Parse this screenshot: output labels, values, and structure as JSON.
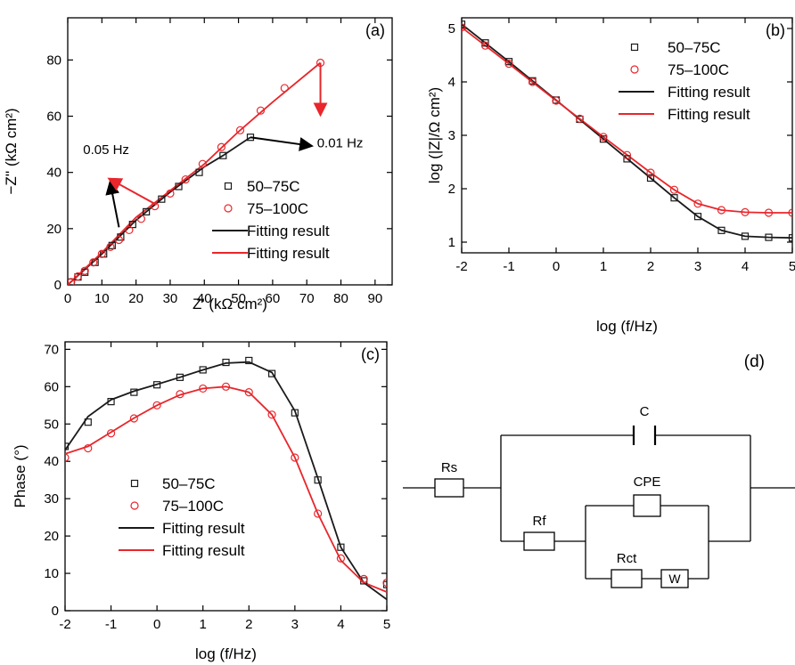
{
  "colors": {
    "black_series": "#1a1a1a",
    "red_series": "#e8262b",
    "axis": "#000000"
  },
  "chart_data": [
    {
      "panel": "(a)",
      "type": "scatter",
      "xlabel": "Z' (kΩ cm²)",
      "ylabel": "−Z'' (kΩ cm²)",
      "xlim": [
        0,
        95
      ],
      "ylim": [
        0,
        95
      ],
      "xticks": [
        0,
        10,
        20,
        30,
        40,
        50,
        60,
        70,
        80,
        90
      ],
      "yticks": [
        0,
        20,
        40,
        60,
        80
      ],
      "legend": [
        "50–75C",
        "75–100C",
        "Fitting result",
        "Fitting result"
      ],
      "legend_position": "right",
      "annotations": [
        "0.05 Hz",
        "0.01 Hz"
      ],
      "series": [
        {
          "name": "50–75C",
          "marker": "square",
          "color": "black",
          "x": [
            1,
            3,
            5,
            8,
            10.5,
            13,
            15.5,
            19,
            23,
            27.5,
            32.5,
            38.5,
            45.5,
            53.5
          ],
          "y": [
            1,
            2.8,
            4.5,
            8,
            11,
            14,
            17,
            21.5,
            26,
            30.5,
            35,
            40,
            46,
            52.5
          ]
        },
        {
          "name": "75–100C",
          "marker": "circle",
          "color": "red",
          "x": [
            1,
            3,
            5,
            7.5,
            10,
            12.5,
            15,
            18,
            21.5,
            25.5,
            30,
            34.5,
            39.5,
            45,
            50.5,
            56.5,
            63.5,
            74
          ],
          "y": [
            1,
            3,
            5,
            8,
            11,
            13.5,
            16,
            19.5,
            23.5,
            28,
            32.5,
            37.5,
            43,
            49,
            55,
            62,
            70,
            79
          ]
        },
        {
          "name": "Fitting result",
          "type": "line",
          "color": "black",
          "x": [
            0,
            10,
            20,
            30,
            40,
            45.5,
            53.5
          ],
          "y": [
            0,
            11,
            23,
            33,
            42,
            46,
            52.5
          ]
        },
        {
          "name": "Fitting result",
          "type": "line",
          "color": "red",
          "x": [
            0,
            10,
            20,
            30,
            40,
            50,
            60,
            74
          ],
          "y": [
            0,
            11.5,
            24,
            33.5,
            43,
            54.5,
            65,
            79
          ]
        }
      ]
    },
    {
      "panel": "(b)",
      "type": "scatter",
      "xlabel": "log (f/Hz)",
      "ylabel": "log (|Z|/Ω cm²)",
      "xlim": [
        -2,
        5
      ],
      "ylim": [
        0.8,
        5.2
      ],
      "xticks": [
        -2,
        -1,
        0,
        1,
        2,
        3,
        4,
        5
      ],
      "yticks": [
        1,
        2,
        3,
        4,
        5
      ],
      "legend": [
        "50–75C",
        "75–100C",
        "Fitting result",
        "Fitting result"
      ],
      "legend_position": "top-right",
      "series": [
        {
          "name": "50–75C",
          "marker": "square",
          "color": "black",
          "x": [
            -2,
            -1.5,
            -1,
            -0.5,
            0,
            0.5,
            1,
            1.5,
            2,
            2.5,
            3,
            3.5,
            4,
            4.5,
            5
          ],
          "y": [
            5.08,
            4.73,
            4.38,
            4.02,
            3.66,
            3.3,
            2.93,
            2.56,
            2.2,
            1.83,
            1.48,
            1.22,
            1.11,
            1.09,
            1.08
          ]
        },
        {
          "name": "75–100C",
          "marker": "circle",
          "color": "red",
          "x": [
            -2,
            -1.5,
            -1,
            -0.5,
            0,
            0.5,
            1,
            1.5,
            2,
            2.5,
            3,
            3.5,
            4,
            4.5,
            5
          ],
          "y": [
            5.02,
            4.68,
            4.34,
            4.0,
            3.65,
            3.31,
            2.97,
            2.63,
            2.3,
            1.98,
            1.72,
            1.6,
            1.56,
            1.55,
            1.55
          ]
        },
        {
          "name": "Fitting result",
          "type": "line",
          "color": "black",
          "x": [
            -2,
            -1,
            0,
            1,
            2,
            2.5,
            3,
            3.5,
            4,
            4.5,
            5
          ],
          "y": [
            5.08,
            4.38,
            3.66,
            2.93,
            2.2,
            1.83,
            1.48,
            1.22,
            1.11,
            1.09,
            1.08
          ]
        },
        {
          "name": "Fitting result",
          "type": "line",
          "color": "red",
          "x": [
            -2,
            -1,
            0,
            1,
            2,
            2.5,
            3,
            3.5,
            4,
            4.5,
            5
          ],
          "y": [
            5.02,
            4.34,
            3.65,
            2.97,
            2.3,
            1.98,
            1.72,
            1.6,
            1.56,
            1.55,
            1.55
          ]
        }
      ]
    },
    {
      "panel": "(c)",
      "type": "scatter",
      "xlabel": "log (f/Hz)",
      "ylabel": "Phase (°)",
      "xlim": [
        -2,
        5
      ],
      "ylim": [
        0,
        72
      ],
      "xticks": [
        -2,
        -1,
        0,
        1,
        2,
        3,
        4,
        5
      ],
      "yticks": [
        0,
        10,
        20,
        30,
        40,
        50,
        60,
        70
      ],
      "legend": [
        "50–75C",
        "75–100C",
        "Fitting result",
        "Fitting result"
      ],
      "legend_position": "bottom-left",
      "series": [
        {
          "name": "50–75C",
          "marker": "square",
          "color": "black",
          "x": [
            -2,
            -1.5,
            -1,
            -0.5,
            0,
            0.5,
            1,
            1.5,
            2,
            2.5,
            3,
            3.5,
            4,
            4.5,
            5
          ],
          "y": [
            44,
            50.5,
            56,
            58.5,
            60.5,
            62.5,
            64.5,
            66.5,
            67,
            63.5,
            53,
            35,
            17,
            8,
            7
          ]
        },
        {
          "name": "75–100C",
          "marker": "circle",
          "color": "red",
          "x": [
            -2,
            -1.5,
            -1,
            -0.5,
            0,
            0.5,
            1,
            1.5,
            2,
            2.5,
            3,
            3.5,
            4,
            4.5,
            5
          ],
          "y": [
            41,
            43.5,
            47.5,
            51.5,
            55,
            58,
            59.5,
            60,
            58.5,
            52.5,
            41,
            26,
            14,
            8.5,
            7.5
          ]
        },
        {
          "name": "Fitting result",
          "type": "line",
          "color": "black",
          "x": [
            -2,
            -1.5,
            -1,
            -0.5,
            0,
            0.5,
            1,
            1.5,
            2,
            2.5,
            3,
            3.5,
            4,
            4.5,
            5
          ],
          "y": [
            43,
            52,
            56.5,
            58.8,
            60.6,
            62.5,
            64.5,
            66.3,
            66.6,
            63.8,
            53.5,
            35.5,
            17,
            7.5,
            3
          ]
        },
        {
          "name": "Fitting result",
          "type": "line",
          "color": "red",
          "x": [
            -2,
            -1.5,
            -1,
            -0.5,
            0,
            0.5,
            1,
            1.5,
            2,
            2.5,
            3,
            3.5,
            4,
            4.5,
            5
          ],
          "y": [
            42,
            44,
            47.8,
            51.6,
            55,
            57.8,
            59.5,
            60,
            58.5,
            52.5,
            41,
            26,
            13.5,
            7.5,
            5
          ]
        }
      ]
    }
  ],
  "circuit": {
    "panel_label": "(d)",
    "labels": {
      "C": "C",
      "Rs": "Rs",
      "Rf": "Rf",
      "CPE": "CPE",
      "Rct": "Rct",
      "W": "W"
    }
  }
}
